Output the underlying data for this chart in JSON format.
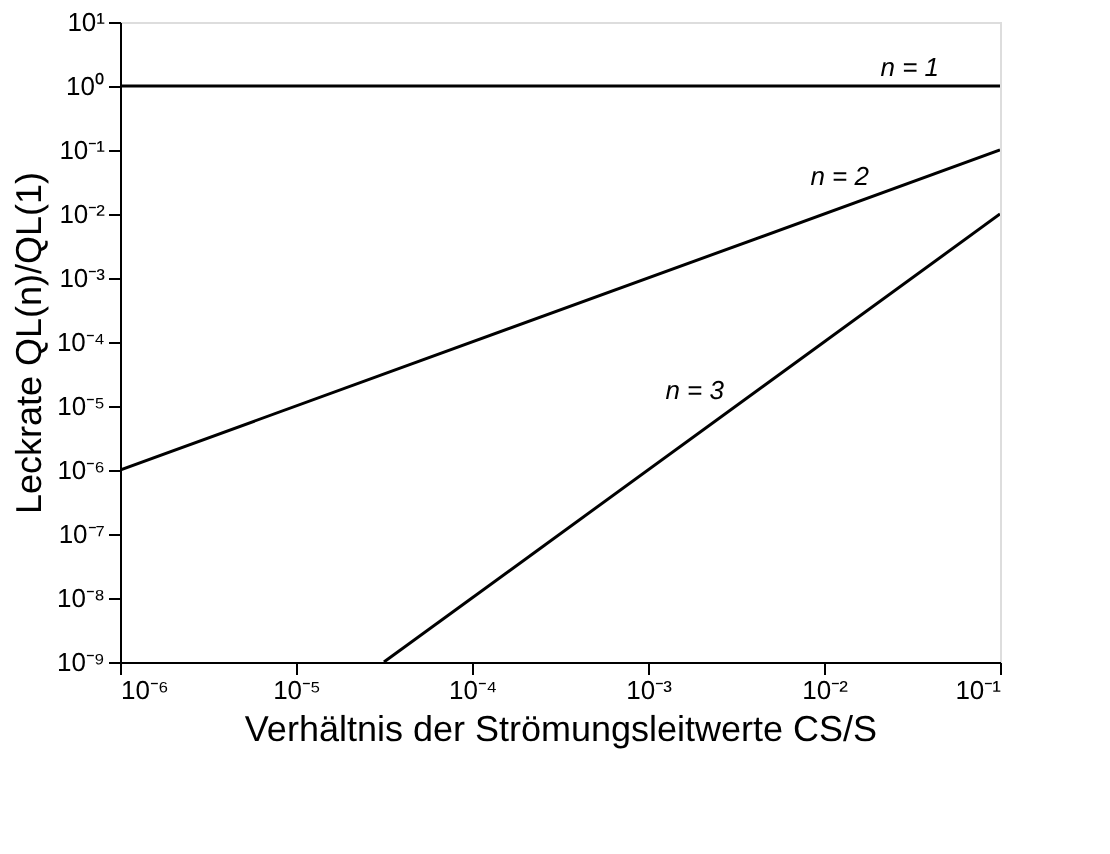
{
  "chart_data": {
    "type": "line",
    "xlabel": "Verhältnis der Strömungsleitwerte CS/S",
    "ylabel": "Leckrate QL(n)/QL(1)",
    "log": "xy",
    "grid": false,
    "line_style": "solid",
    "xlim": [
      1e-06,
      0.1
    ],
    "ylim": [
      1e-09,
      10
    ],
    "xticks": [
      {
        "value": 1e-06,
        "label": "10⁻⁶"
      },
      {
        "value": 1e-05,
        "label": "10⁻⁵"
      },
      {
        "value": 0.0001,
        "label": "10⁻⁴"
      },
      {
        "value": 0.001,
        "label": "10⁻³"
      },
      {
        "value": 0.01,
        "label": "10⁻²"
      },
      {
        "value": 0.1,
        "label": "10⁻¹"
      }
    ],
    "yticks": [
      {
        "value": 1e-09,
        "label": "10⁻⁹"
      },
      {
        "value": 1e-08,
        "label": "10⁻⁸"
      },
      {
        "value": 1e-07,
        "label": "10⁻⁷"
      },
      {
        "value": 1e-06,
        "label": "10⁻⁶"
      },
      {
        "value": 1e-05,
        "label": "10⁻⁵"
      },
      {
        "value": 0.0001,
        "label": "10⁻⁴"
      },
      {
        "value": 0.001,
        "label": "10⁻³"
      },
      {
        "value": 0.01,
        "label": "10⁻²"
      },
      {
        "value": 0.1,
        "label": "10⁻¹"
      },
      {
        "value": 1,
        "label": "10⁰"
      },
      {
        "value": 10,
        "label": "10¹"
      }
    ],
    "series": [
      {
        "color": "#000000",
        "x": [
          1e-06,
          0.1
        ],
        "values": [
          1,
          1
        ]
      },
      {
        "color": "#000000",
        "x": [
          1e-06,
          0.1
        ],
        "values": [
          1e-06,
          0.1
        ]
      },
      {
        "color": "#000000",
        "x": [
          3.16e-05,
          0.1
        ],
        "values": [
          1e-09,
          0.01
        ]
      }
    ],
    "annotations": [
      {
        "text": "n = 1",
        "x": 0.05,
        "y": 1
      },
      {
        "text": "n = 2",
        "x": 0.02,
        "y": 0.02
      },
      {
        "text": "n = 3",
        "x": 0.003,
        "y": 9e-06
      }
    ]
  }
}
